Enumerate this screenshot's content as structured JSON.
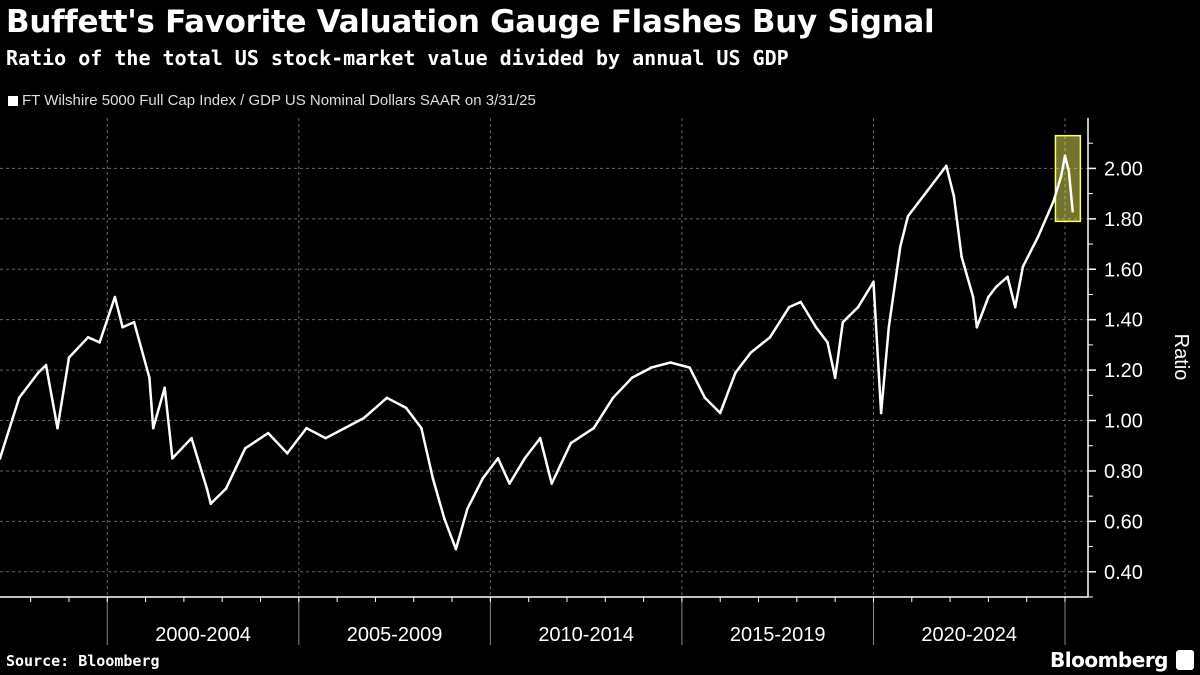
{
  "header": {
    "title": "Buffett's Favorite Valuation Gauge Flashes Buy Signal",
    "subtitle": "Ratio of the total US stock-market value divided by annual US GDP"
  },
  "footer": {
    "source": "Source: Bloomberg",
    "brand": "Bloomberg"
  },
  "chart_data": {
    "type": "line",
    "title": "Buffett's Favorite Valuation Gauge Flashes Buy Signal",
    "subtitle": "Ratio of the total US stock-market value divided by annual US GDP",
    "ylabel": "Ratio",
    "xlabel": "",
    "ylim": [
      0.3,
      2.2
    ],
    "xlim": [
      1997.2,
      2025.6
    ],
    "grid": true,
    "legend_placement": "top-left",
    "yticks": [
      0.4,
      0.6,
      0.8,
      1.0,
      1.2,
      1.4,
      1.6,
      1.8,
      2.0
    ],
    "ytick_labels": [
      "0.40",
      "0.60",
      "0.80",
      "1.00",
      "1.20",
      "1.40",
      "1.60",
      "1.80",
      "2.00"
    ],
    "xtick_labels": [
      "2000-2004",
      "2005-2009",
      "2010-2014",
      "2015-2019",
      "2020-2024"
    ],
    "xtick_ranges": [
      [
        2000,
        2005
      ],
      [
        2005,
        2010
      ],
      [
        2010,
        2015
      ],
      [
        2015,
        2020
      ],
      [
        2020,
        2025
      ]
    ],
    "highlight": {
      "x": [
        2024.75,
        2025.4
      ],
      "y": [
        1.79,
        2.13
      ],
      "color": "#ffff66"
    },
    "colors": {
      "line": "#ffffff",
      "background": "#000000",
      "highlight_line": "#ffff99"
    },
    "series": [
      {
        "name": "FT Wilshire 5000 Full Cap Index / GDP US Nominal Dollars SAAR on 3/31/25",
        "x": [
          1997.2,
          1997.7,
          1998.2,
          1998.4,
          1998.7,
          1999.0,
          1999.5,
          1999.8,
          2000.2,
          2000.4,
          2000.7,
          2001.1,
          2001.2,
          2001.5,
          2001.7,
          2002.2,
          2002.6,
          2002.7,
          2003.1,
          2003.6,
          2004.2,
          2004.7,
          2005.2,
          2005.7,
          2006.2,
          2006.7,
          2007.3,
          2007.8,
          2008.2,
          2008.5,
          2008.8,
          2009.1,
          2009.4,
          2009.8,
          2010.2,
          2010.5,
          2010.9,
          2011.3,
          2011.6,
          2012.1,
          2012.7,
          2013.2,
          2013.7,
          2014.2,
          2014.7,
          2015.2,
          2015.6,
          2016.0,
          2016.4,
          2016.8,
          2017.3,
          2017.8,
          2018.1,
          2018.5,
          2018.8,
          2019.0,
          2019.2,
          2019.6,
          2020.0,
          2020.2,
          2020.4,
          2020.7,
          2020.9,
          2021.4,
          2021.9,
          2022.1,
          2022.3,
          2022.6,
          2022.7,
          2023.0,
          2023.2,
          2023.5,
          2023.7,
          2023.9,
          2024.3,
          2024.7,
          2024.9,
          2025.0,
          2025.1,
          2025.2
        ],
        "values": [
          0.85,
          1.09,
          1.19,
          1.22,
          0.97,
          1.25,
          1.33,
          1.31,
          1.49,
          1.37,
          1.39,
          1.17,
          0.97,
          1.13,
          0.85,
          0.93,
          0.73,
          0.67,
          0.73,
          0.89,
          0.95,
          0.87,
          0.97,
          0.93,
          0.97,
          1.01,
          1.09,
          1.05,
          0.97,
          0.77,
          0.61,
          0.49,
          0.65,
          0.77,
          0.85,
          0.75,
          0.85,
          0.93,
          0.75,
          0.91,
          0.97,
          1.09,
          1.17,
          1.21,
          1.23,
          1.21,
          1.09,
          1.03,
          1.19,
          1.27,
          1.33,
          1.45,
          1.47,
          1.37,
          1.31,
          1.17,
          1.39,
          1.45,
          1.55,
          1.03,
          1.37,
          1.69,
          1.81,
          1.91,
          2.01,
          1.89,
          1.65,
          1.49,
          1.37,
          1.49,
          1.53,
          1.57,
          1.45,
          1.61,
          1.73,
          1.87,
          1.97,
          2.05,
          1.99,
          1.83
        ]
      }
    ]
  }
}
